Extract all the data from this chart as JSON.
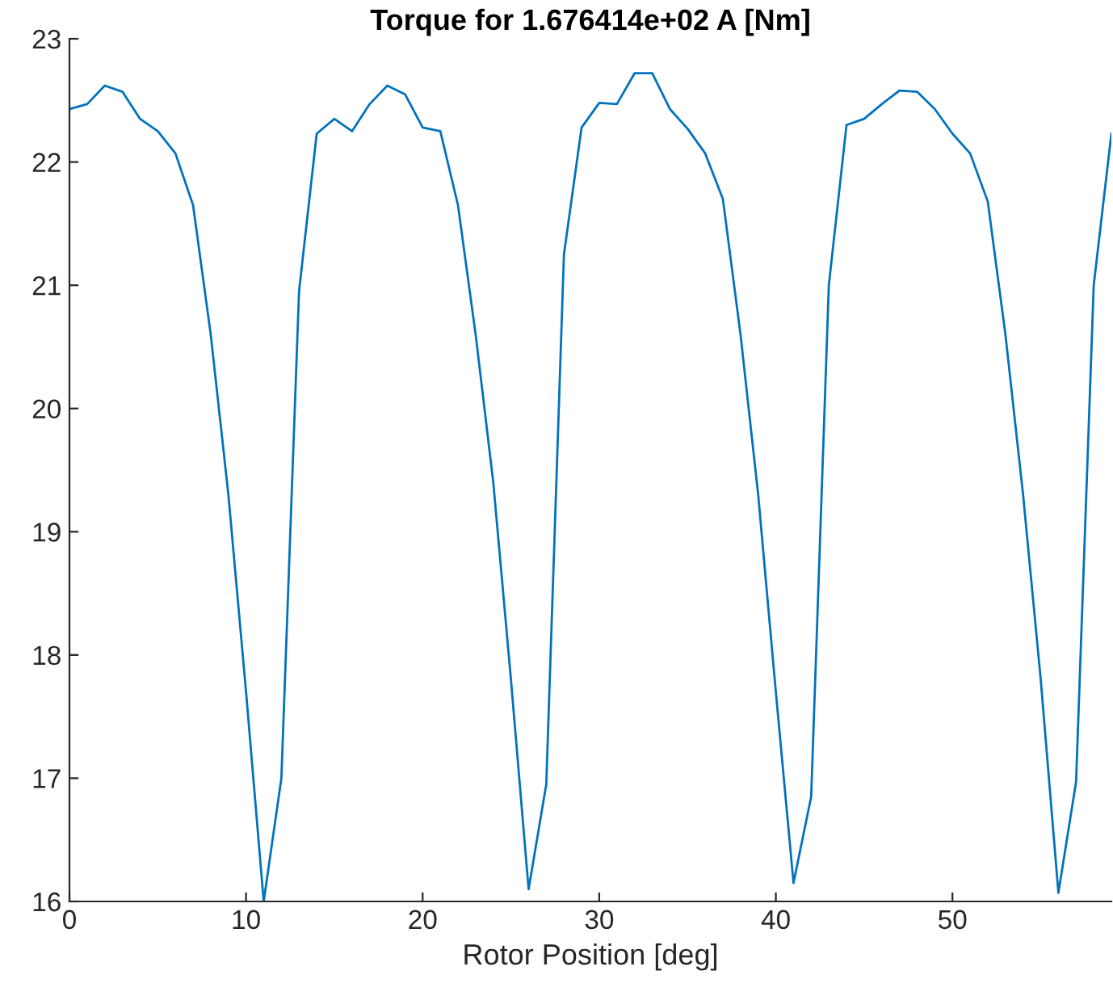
{
  "chart_data": {
    "type": "line",
    "title": "Torque for 1.676414e+02 A [Nm]",
    "xlabel": "Rotor Position [deg]",
    "x": [
      0,
      1,
      2,
      3,
      4,
      5,
      6,
      7,
      8,
      9,
      10,
      11,
      12,
      13,
      14,
      15,
      16,
      17,
      18,
      19,
      20,
      21,
      22,
      23,
      24,
      25,
      26,
      27,
      28,
      29,
      30,
      31,
      32,
      33,
      34,
      35,
      36,
      37,
      38,
      39,
      40,
      41,
      42,
      43,
      44,
      45,
      46,
      47,
      48,
      49,
      50,
      51,
      52,
      53,
      54,
      55,
      56,
      57,
      58,
      59
    ],
    "series": [
      {
        "color": "#0072bd",
        "values": [
          22.43,
          22.47,
          22.62,
          22.57,
          22.35,
          22.25,
          22.07,
          21.65,
          20.6,
          19.3,
          17.7,
          16.0,
          17.0,
          20.95,
          22.23,
          22.35,
          22.25,
          22.47,
          22.62,
          22.55,
          22.28,
          22.25,
          21.65,
          20.6,
          19.4,
          17.8,
          16.1,
          16.95,
          21.25,
          22.28,
          22.48,
          22.47,
          22.72,
          22.72,
          22.43,
          22.27,
          22.07,
          21.7,
          20.6,
          19.3,
          17.7,
          16.15,
          16.85,
          21.0,
          22.3,
          22.35,
          22.47,
          22.58,
          22.57,
          22.43,
          22.23,
          22.07,
          21.68,
          20.6,
          19.3,
          17.8,
          16.07,
          16.97,
          21.0,
          22.23
        ]
      }
    ],
    "xlim": [
      0,
      59
    ],
    "ylim": [
      16,
      23
    ],
    "xticks": [
      0,
      10,
      20,
      30,
      40,
      50
    ],
    "yticks": [
      16,
      17,
      18,
      19,
      20,
      21,
      22,
      23
    ],
    "grid": false,
    "legend": false,
    "marker": "none",
    "line_style": "solid"
  }
}
